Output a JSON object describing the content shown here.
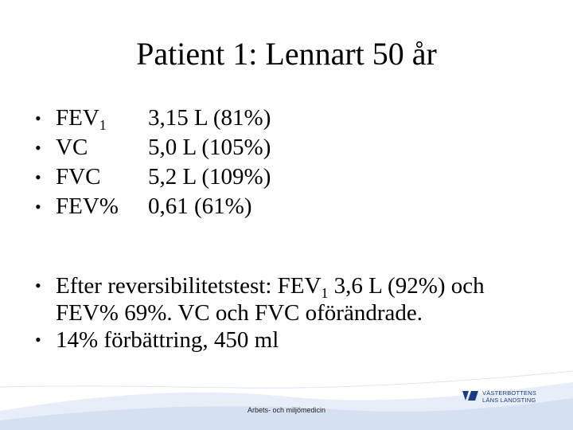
{
  "slide": {
    "title": "Patient 1: Lennart 50 år"
  },
  "bullet_char": "•",
  "measures": [
    {
      "label": "FEV",
      "sub": "1",
      "value": "3,15 L (81%)"
    },
    {
      "label": "VC",
      "sub": "",
      "value": "5,0 L (105%)"
    },
    {
      "label": "FVC",
      "sub": "",
      "value": "5,2 L (109%)"
    },
    {
      "label": "FEV%",
      "sub": "",
      "value": "0,61 (61%)"
    }
  ],
  "notes": {
    "item1": {
      "pre": "Efter reversibilitetstest: FEV",
      "sub": "1",
      "post": " 3,6 L (92%) och FEV% 69%. VC och FVC oförändrade."
    },
    "item2": "14% förbättring, 450 ml"
  },
  "footer": {
    "text": "Arbets- och miljömedicin",
    "logo_line1": "VÄSTERBOTTENS",
    "logo_line2": "LÄNS LANDSTING",
    "logo_color": "#1a3a8c",
    "wave_color": "#c9d9ee"
  }
}
